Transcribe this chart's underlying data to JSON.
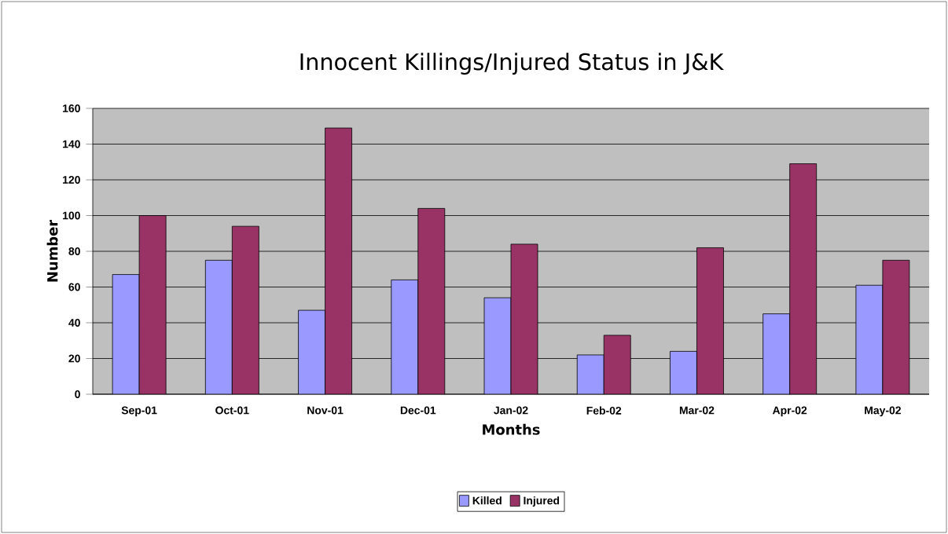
{
  "chart_data": {
    "type": "bar",
    "title": "Innocent Killings/Injured Status in J&K",
    "xlabel": "Months",
    "ylabel": "Number",
    "categories": [
      "Sep-01",
      "Oct-01",
      "Nov-01",
      "Dec-01",
      "Jan-02",
      "Feb-02",
      "Mar-02",
      "Apr-02",
      "May-02"
    ],
    "series": [
      {
        "name": "Killed",
        "color": "#9999ff",
        "values": [
          67,
          75,
          47,
          64,
          54,
          22,
          24,
          45,
          61
        ]
      },
      {
        "name": "Injured",
        "color": "#993366",
        "values": [
          100,
          94,
          149,
          104,
          84,
          33,
          82,
          129,
          75
        ]
      }
    ],
    "ylim": [
      0,
      160
    ],
    "yticks": [
      0,
      20,
      40,
      60,
      80,
      100,
      120,
      140,
      160
    ],
    "grid": "y",
    "legend": "bottom"
  }
}
